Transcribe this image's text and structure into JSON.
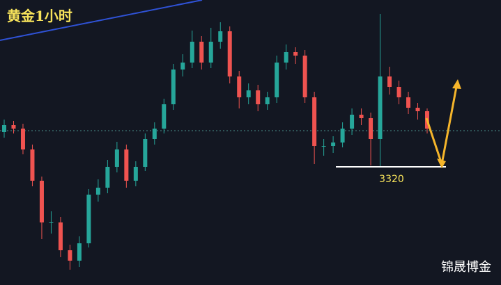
{
  "chart_data": {
    "type": "candlestick",
    "title": "黄金1小时",
    "watermark": "锦晟博金",
    "ylim": [
      3235,
      3440
    ],
    "up_color": "#26a69a",
    "down_color": "#ef5350",
    "open": [
      3345,
      3350,
      3347.5,
      3332.5,
      3310,
      3280,
      3280,
      3260,
      3252.5,
      3265,
      3300,
      3305,
      3320,
      3332.5,
      3310,
      3320,
      3340,
      3347.5,
      3365,
      3390,
      3395,
      3410,
      3395,
      3410,
      3417.5,
      3385,
      3370,
      3375,
      3365,
      3370,
      3395,
      3402.5,
      3400,
      3370,
      3335,
      3335,
      3337.5,
      3347.5,
      3357.5,
      3355,
      3340,
      3385,
      3377.5,
      3370,
      3362.5,
      3360
    ],
    "high": [
      3354,
      3353,
      3351,
      3336,
      3313,
      3288,
      3284,
      3264,
      3270,
      3304,
      3311,
      3325,
      3338,
      3336,
      3324,
      3344,
      3352,
      3369,
      3394,
      3401,
      3418,
      3414,
      3420,
      3424,
      3421,
      3389,
      3380,
      3379,
      3374,
      3400,
      3408,
      3406,
      3404,
      3374,
      3340,
      3342,
      3352,
      3362,
      3362,
      3359,
      3430,
      3392,
      3382,
      3374,
      3366,
      3362
    ],
    "low": [
      3341,
      3344,
      3329,
      3306,
      3268,
      3272,
      3255,
      3246,
      3248,
      3262,
      3295,
      3301,
      3316,
      3305,
      3306,
      3317,
      3336,
      3344,
      3361,
      3385,
      3391,
      3390,
      3391,
      3405,
      3380,
      3362,
      3365,
      3360,
      3361,
      3366,
      3390,
      3394,
      3366,
      3322,
      3328,
      3330,
      3334,
      3343,
      3350,
      3321,
      3320,
      3372,
      3365,
      3358,
      3354,
      3344
    ],
    "close": [
      3350,
      3347.5,
      3332.5,
      3310,
      3280,
      3280,
      3260,
      3252.5,
      3265,
      3300,
      3305,
      3320,
      3332.5,
      3310,
      3320,
      3340,
      3347.5,
      3365,
      3390,
      3395,
      3410,
      3395,
      3410,
      3417.5,
      3385,
      3370,
      3375,
      3365,
      3370,
      3395,
      3402.5,
      3400,
      3370,
      3335,
      3335,
      3337.5,
      3347.5,
      3357.5,
      3355,
      3340,
      3385,
      3377.5,
      3370,
      3362.5,
      3360,
      3347.5
    ],
    "last_price": 3346,
    "support": 3320
  }
}
